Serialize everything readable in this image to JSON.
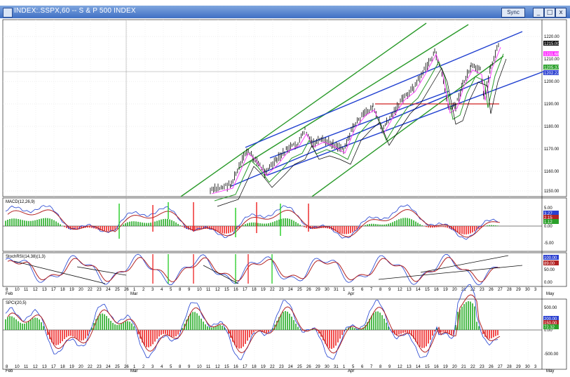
{
  "window": {
    "title": "INDEX:.SSPX,60 -- S & P 500 INDEX",
    "sync_label": "Sync",
    "minimize": "_",
    "maximize": "□",
    "close": "x"
  },
  "price_panel": {
    "axis_labels": [
      "1220.00",
      "1210.00",
      "1200.00",
      "1190.00",
      "1180.00",
      "1170.00",
      "1160.00",
      "1150.00"
    ],
    "tags": [
      {
        "text": "1215.00",
        "bg": "#111111",
        "fg": "#ffffff"
      },
      {
        "text": "1211.68",
        "bg": "#ff33ff",
        "fg": "#ffffff"
      },
      {
        "text": "1205.37",
        "bg": "#2aa02a",
        "fg": "#ffffff"
      },
      {
        "text": "1202.22",
        "bg": "#2a3fd0",
        "fg": "#ffffff"
      }
    ]
  },
  "macd_panel": {
    "label": "MACD(12,26,9)",
    "axis_labels": [
      "5.00",
      "0.00",
      "-5.00"
    ],
    "tags": [
      {
        "text": "3.27",
        "bg": "#2a3fd0",
        "fg": "#ffffff"
      },
      {
        "text": "2.15",
        "bg": "#b22222",
        "fg": "#ffffff"
      },
      {
        "text": "1.12",
        "bg": "#2aa02a",
        "fg": "#ffffff"
      }
    ]
  },
  "stoch_panel": {
    "label": "StochRSI(14,38)(1,3)",
    "axis_labels": [
      "100.00",
      "50.00",
      "0.00"
    ],
    "tags": [
      {
        "text": "100.00",
        "bg": "#2a3fd0",
        "fg": "#ffffff"
      },
      {
        "text": "89.00",
        "bg": "#b22222",
        "fg": "#ffffff"
      }
    ]
  },
  "dates_top": {
    "days": [
      "8",
      "10",
      "11",
      "12",
      "13",
      "17",
      "18",
      "19",
      "20",
      "22",
      "23",
      "24",
      "25",
      "26",
      "1",
      "2",
      "3",
      "4",
      "5",
      "8",
      "9",
      "10",
      "11",
      "12",
      "15",
      "16",
      "17",
      "18",
      "19",
      "22",
      "23",
      "24",
      "25",
      "26",
      "29",
      "30",
      "31",
      "1",
      "5",
      "6",
      "7",
      "8",
      "9",
      "12",
      "13",
      "14",
      "15",
      "16",
      "19",
      "20",
      "21",
      "22",
      "23",
      "26",
      "27",
      "28",
      "29",
      "30",
      "3"
    ],
    "months": [
      "Feb",
      "Mar",
      "Apr",
      "May"
    ]
  },
  "osc_panel": {
    "label": "SPCI(20,5)",
    "axis_labels": [
      "500.00",
      "0.00",
      "-500.00"
    ],
    "tags": [
      {
        "text": "200.00",
        "bg": "#2a3fd0",
        "fg": "#ffffff"
      },
      {
        "text": "150.00",
        "bg": "#b22222",
        "fg": "#ffffff"
      },
      {
        "text": "72.32",
        "bg": "#2aa02a",
        "fg": "#ffffff"
      }
    ]
  },
  "dates_bottom": {
    "days": [
      "8",
      "10",
      "11",
      "12",
      "13",
      "17",
      "18",
      "19",
      "20",
      "22",
      "23",
      "24",
      "25",
      "26",
      "1",
      "2",
      "3",
      "4",
      "5",
      "8",
      "9",
      "10",
      "11",
      "12",
      "15",
      "16",
      "17",
      "18",
      "19",
      "22",
      "23",
      "24",
      "25",
      "26",
      "29",
      "30",
      "31",
      "1",
      "5",
      "6",
      "7",
      "8",
      "9",
      "12",
      "13",
      "14",
      "15",
      "16",
      "19",
      "20",
      "21",
      "22",
      "23",
      "26",
      "27",
      "28",
      "29",
      "30",
      "3"
    ],
    "months": [
      "Feb",
      "Mar",
      "Apr",
      "May"
    ]
  },
  "colors": {
    "titlebar": "#3f6fc4",
    "channel_blue": "#1f3fd0",
    "channel_green": "#2a9a2a",
    "support_red": "#d02020",
    "ma_pink": "#ff33ff",
    "histogram_green": "#22aa22",
    "histogram_red": "#ee2222"
  }
}
